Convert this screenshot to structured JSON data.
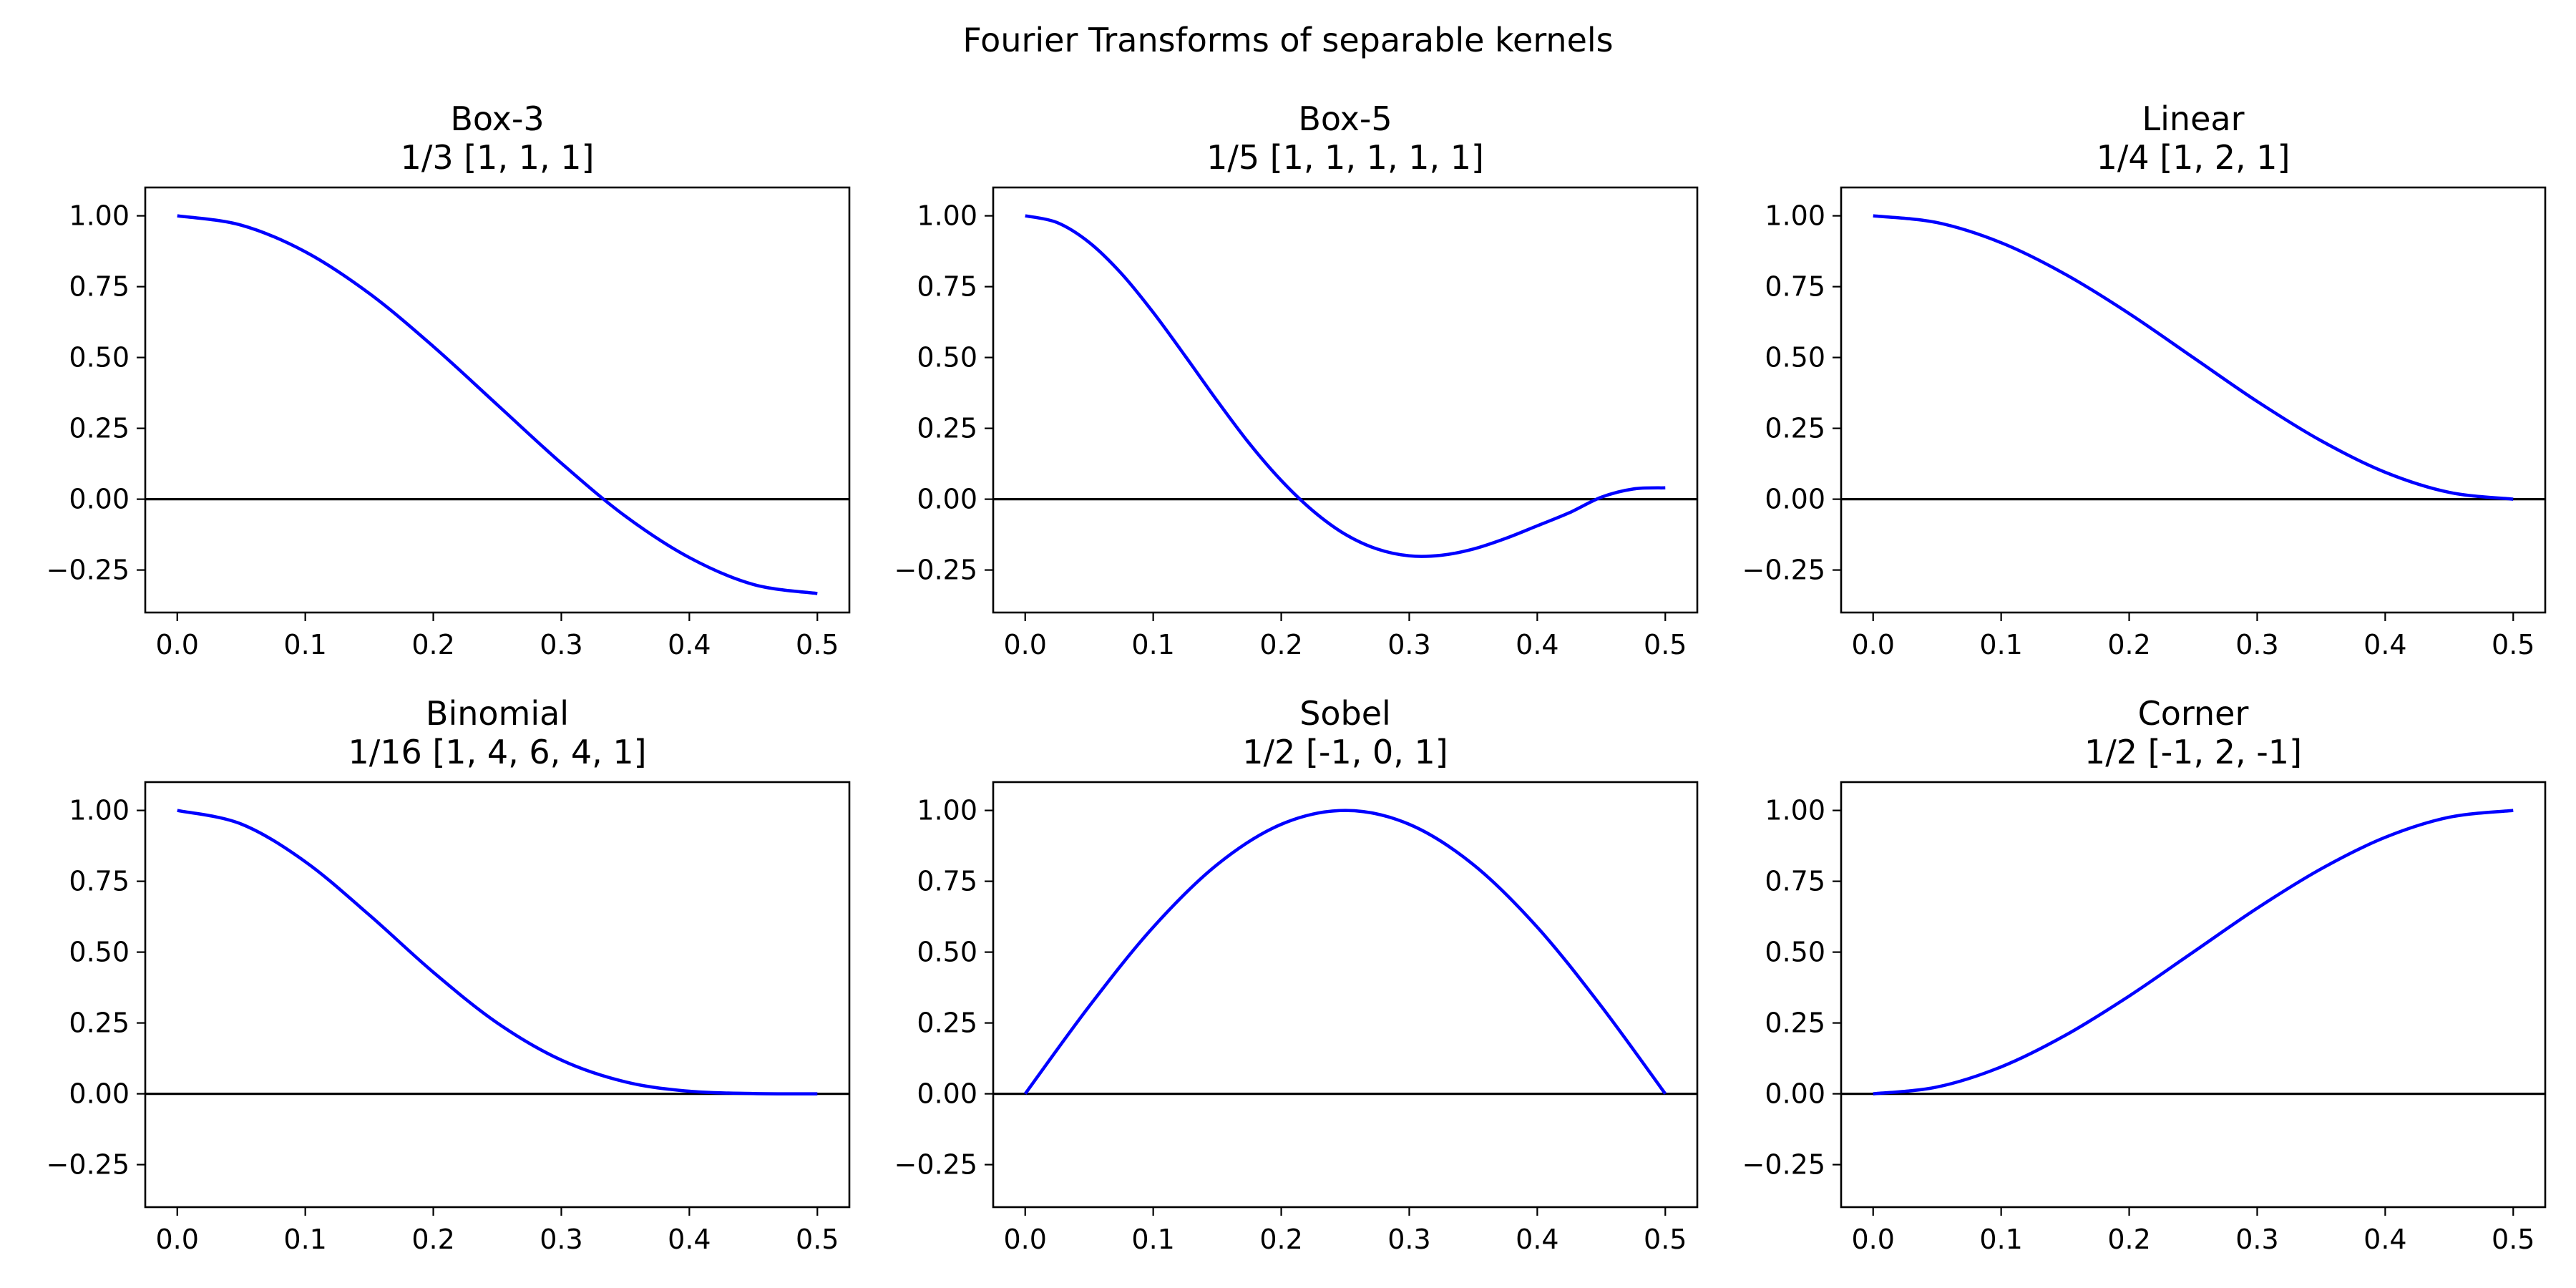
{
  "figure": {
    "title": "Fourier Transforms of separable kernels"
  },
  "style": {
    "curve_color": "#0000ff",
    "zero_line_color": "#000000",
    "axes_color": "#000000",
    "background": "#ffffff"
  },
  "chart_data": [
    {
      "type": "line",
      "title": "Box-3",
      "subtitle": "1/3 [1, 1, 1]",
      "xlabel": "",
      "ylabel": "",
      "xlim": [
        -0.025,
        0.525
      ],
      "ylim": [
        -0.4,
        1.1
      ],
      "xticks": [
        "0.0",
        "0.1",
        "0.2",
        "0.3",
        "0.4",
        "0.5"
      ],
      "yticks": [
        "1.00",
        "0.75",
        "0.50",
        "0.25",
        "0.00",
        "−0.25"
      ],
      "hline": 0,
      "grid": false,
      "x": [
        0.0,
        0.05,
        0.1,
        0.15,
        0.2,
        0.25,
        0.3,
        0.35,
        0.4,
        0.45,
        0.5
      ],
      "y": [
        1.0,
        0.967,
        0.873,
        0.726,
        0.539,
        0.333,
        0.127,
        -0.06,
        -0.206,
        -0.301,
        -0.333
      ]
    },
    {
      "type": "line",
      "title": "Box-5",
      "subtitle": "1/5 [1, 1, 1, 1, 1]",
      "xlabel": "",
      "ylabel": "",
      "xlim": [
        -0.025,
        0.525
      ],
      "ylim": [
        -0.4,
        1.1
      ],
      "xticks": [
        "0.0",
        "0.1",
        "0.2",
        "0.3",
        "0.4",
        "0.5"
      ],
      "yticks": [
        "1.00",
        "0.75",
        "0.50",
        "0.25",
        "0.00",
        "−0.25"
      ],
      "hline": 0,
      "grid": false,
      "x": [
        0.0,
        0.025,
        0.05,
        0.075,
        0.1,
        0.125,
        0.15,
        0.175,
        0.2,
        0.225,
        0.25,
        0.275,
        0.3,
        0.325,
        0.35,
        0.375,
        0.4,
        0.425,
        0.45,
        0.475,
        0.5
      ],
      "y": [
        1.0,
        0.976,
        0.906,
        0.797,
        0.659,
        0.505,
        0.347,
        0.197,
        0.066,
        -0.042,
        -0.124,
        -0.176,
        -0.2,
        -0.198,
        -0.176,
        -0.139,
        -0.094,
        -0.048,
        0.007,
        0.036,
        0.04
      ]
    },
    {
      "type": "line",
      "title": "Linear",
      "subtitle": "1/4 [1, 2, 1]",
      "xlabel": "",
      "ylabel": "",
      "xlim": [
        -0.025,
        0.525
      ],
      "ylim": [
        -0.4,
        1.1
      ],
      "xticks": [
        "0.0",
        "0.1",
        "0.2",
        "0.3",
        "0.4",
        "0.5"
      ],
      "yticks": [
        "1.00",
        "0.75",
        "0.50",
        "0.25",
        "0.00",
        "−0.25"
      ],
      "hline": 0,
      "grid": false,
      "x": [
        0.0,
        0.05,
        0.1,
        0.15,
        0.2,
        0.25,
        0.3,
        0.35,
        0.4,
        0.45,
        0.5
      ],
      "y": [
        1.0,
        0.976,
        0.905,
        0.794,
        0.655,
        0.5,
        0.345,
        0.206,
        0.095,
        0.024,
        0.0
      ]
    },
    {
      "type": "line",
      "title": "Binomial",
      "subtitle": "1/16 [1, 4, 6, 4, 1]",
      "xlabel": "",
      "ylabel": "",
      "xlim": [
        -0.025,
        0.525
      ],
      "ylim": [
        -0.4,
        1.1
      ],
      "xticks": [
        "0.0",
        "0.1",
        "0.2",
        "0.3",
        "0.4",
        "0.5"
      ],
      "yticks": [
        "1.00",
        "0.75",
        "0.50",
        "0.25",
        "0.00",
        "−0.25"
      ],
      "hline": 0,
      "grid": false,
      "x": [
        0.0,
        0.05,
        0.1,
        0.15,
        0.2,
        0.25,
        0.3,
        0.35,
        0.4,
        0.45,
        0.5
      ],
      "y": [
        1.0,
        0.952,
        0.819,
        0.631,
        0.429,
        0.25,
        0.119,
        0.042,
        0.009,
        0.001,
        0.0
      ]
    },
    {
      "type": "line",
      "title": "Sobel",
      "subtitle": "1/2 [-1, 0, 1]",
      "xlabel": "",
      "ylabel": "",
      "xlim": [
        -0.025,
        0.525
      ],
      "ylim": [
        -0.4,
        1.1
      ],
      "xticks": [
        "0.0",
        "0.1",
        "0.2",
        "0.3",
        "0.4",
        "0.5"
      ],
      "yticks": [
        "1.00",
        "0.75",
        "0.50",
        "0.25",
        "0.00",
        "−0.25"
      ],
      "hline": 0,
      "grid": false,
      "x": [
        0.0,
        0.05,
        0.1,
        0.15,
        0.2,
        0.25,
        0.3,
        0.35,
        0.4,
        0.45,
        0.5
      ],
      "y": [
        0.0,
        0.309,
        0.588,
        0.809,
        0.951,
        1.0,
        0.951,
        0.809,
        0.588,
        0.309,
        0.0
      ]
    },
    {
      "type": "line",
      "title": "Corner",
      "subtitle": "1/2 [-1, 2, -1]",
      "xlabel": "",
      "ylabel": "",
      "xlim": [
        -0.025,
        0.525
      ],
      "ylim": [
        -0.4,
        1.1
      ],
      "xticks": [
        "0.0",
        "0.1",
        "0.2",
        "0.3",
        "0.4",
        "0.5"
      ],
      "yticks": [
        "1.00",
        "0.75",
        "0.50",
        "0.25",
        "0.00",
        "−0.25"
      ],
      "hline": 0,
      "grid": false,
      "x": [
        0.0,
        0.05,
        0.1,
        0.15,
        0.2,
        0.25,
        0.3,
        0.35,
        0.4,
        0.45,
        0.5
      ],
      "y": [
        0.0,
        0.024,
        0.095,
        0.206,
        0.345,
        0.5,
        0.655,
        0.794,
        0.905,
        0.976,
        1.0
      ]
    }
  ]
}
